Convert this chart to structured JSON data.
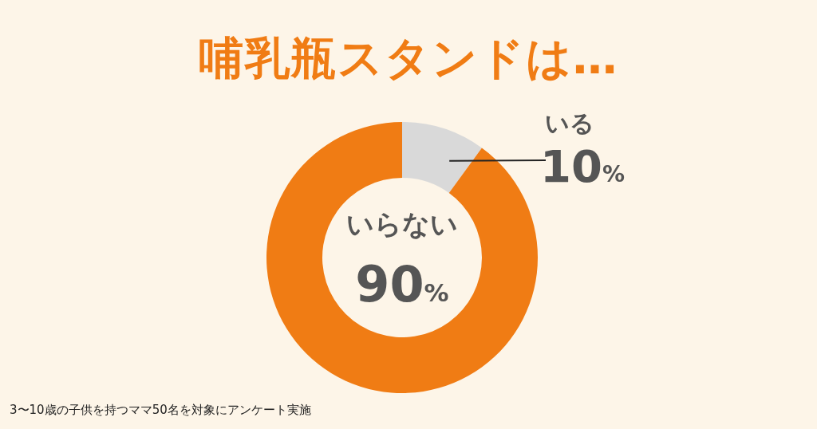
{
  "chart_data": {
    "type": "donut",
    "title": "哺乳瓶スタンドは…",
    "categories": [
      "いる",
      "いらない"
    ],
    "values": [
      10,
      90
    ],
    "colors": [
      "#d9d9d9",
      "#f07c14"
    ],
    "value_labels": [
      "10%",
      "90%"
    ],
    "legend": false,
    "annotations": [
      "3〜10歳の子供を持つママ50名を対象にアンケート実施"
    ]
  }
}
